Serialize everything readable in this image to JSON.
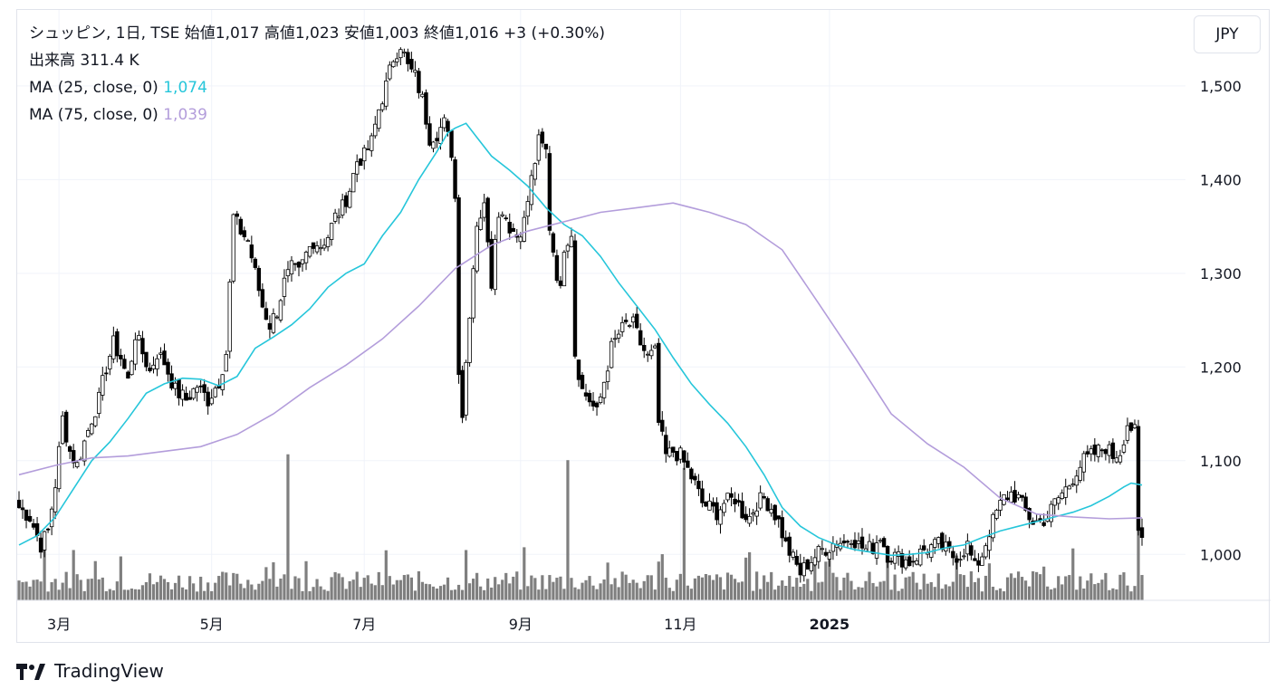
{
  "header": {
    "line1": "シュッピン, 1日, TSE  始値1,017  高値1,023  安値1,003  終値1,016  +3 (+0.30%)",
    "volume": "出来高  311.4 K",
    "ma25_label": "MA (25, close, 0)",
    "ma25_value": "1,074",
    "ma75_label": "MA (75, close, 0)",
    "ma75_value": "1,039"
  },
  "currency": "JPY",
  "brand": "TradingView",
  "colors": {
    "ma25": "#26c6da",
    "ma75": "#b39ddb",
    "candle": "#000000",
    "volume": "#7f7f7f",
    "grid": "#f0f3fa"
  },
  "chart_data": {
    "type": "candlestick",
    "symbol": "シュッピン",
    "interval": "1日",
    "exchange": "TSE",
    "y_ticks": [
      1000,
      1100,
      1200,
      1300,
      1400,
      1500
    ],
    "y_tick_labels": [
      "1,000",
      "1,100",
      "1,200",
      "1,300",
      "1,400",
      "1,500"
    ],
    "ylim": [
      951,
      1581
    ],
    "x_labels": [
      "3月",
      "5月",
      "7月",
      "9月",
      "11月",
      "2025"
    ],
    "x_label_bar_index": [
      11,
      53,
      95,
      138,
      182,
      223
    ],
    "last": {
      "open": 1017,
      "high": 1023,
      "low": 1003,
      "close": 1016,
      "change": 3,
      "change_pct": 0.3
    },
    "close_path": [
      [
        0,
        1050
      ],
      [
        3,
        1040
      ],
      [
        6,
        1010
      ],
      [
        8,
        1025
      ],
      [
        10,
        1075
      ],
      [
        12,
        1145
      ],
      [
        14,
        1110
      ],
      [
        16,
        1095
      ],
      [
        18,
        1120
      ],
      [
        20,
        1145
      ],
      [
        22,
        1165
      ],
      [
        24,
        1200
      ],
      [
        26,
        1225
      ],
      [
        28,
        1210
      ],
      [
        30,
        1185
      ],
      [
        32,
        1235
      ],
      [
        34,
        1215
      ],
      [
        36,
        1195
      ],
      [
        38,
        1215
      ],
      [
        40,
        1205
      ],
      [
        43,
        1175
      ],
      [
        46,
        1165
      ],
      [
        49,
        1180
      ],
      [
        52,
        1165
      ],
      [
        55,
        1185
      ],
      [
        57,
        1215
      ],
      [
        59,
        1360
      ],
      [
        61,
        1345
      ],
      [
        63,
        1335
      ],
      [
        65,
        1300
      ],
      [
        67,
        1265
      ],
      [
        69,
        1245
      ],
      [
        71,
        1260
      ],
      [
        73,
        1290
      ],
      [
        75,
        1305
      ],
      [
        77,
        1300
      ],
      [
        79,
        1320
      ],
      [
        81,
        1335
      ],
      [
        83,
        1330
      ],
      [
        85,
        1340
      ],
      [
        87,
        1360
      ],
      [
        89,
        1370
      ],
      [
        91,
        1390
      ],
      [
        93,
        1420
      ],
      [
        95,
        1425
      ],
      [
        97,
        1440
      ],
      [
        99,
        1475
      ],
      [
        101,
        1500
      ],
      [
        103,
        1530
      ],
      [
        105,
        1545
      ],
      [
        107,
        1520
      ],
      [
        109,
        1510
      ],
      [
        111,
        1485
      ],
      [
        113,
        1445
      ],
      [
        115,
        1450
      ],
      [
        117,
        1460
      ],
      [
        119,
        1430
      ],
      [
        120,
        1380
      ],
      [
        121,
        1200
      ],
      [
        122,
        1150
      ],
      [
        124,
        1260
      ],
      [
        126,
        1355
      ],
      [
        128,
        1370
      ],
      [
        129,
        1340
      ],
      [
        130,
        1290
      ],
      [
        131,
        1345
      ],
      [
        133,
        1370
      ],
      [
        135,
        1350
      ],
      [
        137,
        1340
      ],
      [
        139,
        1355
      ],
      [
        141,
        1400
      ],
      [
        143,
        1440
      ],
      [
        145,
        1430
      ],
      [
        146,
        1350
      ],
      [
        148,
        1300
      ],
      [
        149,
        1280
      ],
      [
        150,
        1330
      ],
      [
        152,
        1345
      ],
      [
        153,
        1215
      ],
      [
        155,
        1175
      ],
      [
        157,
        1165
      ],
      [
        159,
        1150
      ],
      [
        161,
        1185
      ],
      [
        163,
        1220
      ],
      [
        165,
        1235
      ],
      [
        167,
        1245
      ],
      [
        169,
        1245
      ],
      [
        171,
        1225
      ],
      [
        173,
        1210
      ],
      [
        175,
        1215
      ],
      [
        176,
        1140
      ],
      [
        178,
        1105
      ],
      [
        180,
        1110
      ],
      [
        182,
        1105
      ],
      [
        184,
        1090
      ],
      [
        186,
        1075
      ],
      [
        188,
        1055
      ],
      [
        190,
        1050
      ],
      [
        192,
        1045
      ],
      [
        194,
        1055
      ],
      [
        196,
        1058
      ],
      [
        197,
        1060
      ],
      [
        199,
        1045
      ],
      [
        201,
        1040
      ],
      [
        203,
        1055
      ],
      [
        205,
        1060
      ],
      [
        207,
        1050
      ],
      [
        209,
        1035
      ],
      [
        211,
        1010
      ],
      [
        213,
        995
      ],
      [
        215,
        980
      ],
      [
        217,
        990
      ],
      [
        219,
        998
      ],
      [
        221,
        1005
      ],
      [
        223,
        1008
      ],
      [
        225,
        1015
      ],
      [
        227,
        1012
      ],
      [
        229,
        1020
      ],
      [
        231,
        1010
      ],
      [
        233,
        1005
      ],
      [
        235,
        1008
      ],
      [
        237,
        1020
      ],
      [
        239,
        1000
      ],
      [
        241,
        998
      ],
      [
        243,
        995
      ],
      [
        245,
        992
      ],
      [
        247,
        998
      ],
      [
        249,
        1005
      ],
      [
        251,
        1008
      ],
      [
        253,
        1010
      ],
      [
        255,
        1005
      ],
      [
        257,
        998
      ],
      [
        259,
        1000
      ],
      [
        261,
        1010
      ],
      [
        263,
        985
      ],
      [
        265,
        1000
      ],
      [
        267,
        1025
      ],
      [
        269,
        1045
      ],
      [
        271,
        1060
      ],
      [
        273,
        1065
      ],
      [
        275,
        1060
      ],
      [
        277,
        1045
      ],
      [
        279,
        1035
      ],
      [
        281,
        1035
      ],
      [
        283,
        1040
      ],
      [
        285,
        1055
      ],
      [
        287,
        1065
      ],
      [
        289,
        1075
      ],
      [
        291,
        1090
      ],
      [
        293,
        1100
      ],
      [
        295,
        1105
      ],
      [
        297,
        1110
      ],
      [
        299,
        1115
      ],
      [
        301,
        1105
      ],
      [
        303,
        1110
      ],
      [
        305,
        1140
      ],
      [
        307,
        1130
      ],
      [
        308,
        1020
      ],
      [
        309,
        1016
      ]
    ],
    "series": [
      {
        "name": "MA (25, close, 0)",
        "last": 1074,
        "values": [
          [
            0,
            1010
          ],
          [
            5,
            1020
          ],
          [
            10,
            1040
          ],
          [
            15,
            1070
          ],
          [
            20,
            1100
          ],
          [
            25,
            1120
          ],
          [
            30,
            1145
          ],
          [
            35,
            1172
          ],
          [
            40,
            1182
          ],
          [
            45,
            1188
          ],
          [
            50,
            1187
          ],
          [
            55,
            1180
          ],
          [
            60,
            1190
          ],
          [
            65,
            1220
          ],
          [
            70,
            1232
          ],
          [
            75,
            1245
          ],
          [
            80,
            1262
          ],
          [
            85,
            1285
          ],
          [
            90,
            1300
          ],
          [
            95,
            1310
          ],
          [
            100,
            1340
          ],
          [
            105,
            1365
          ],
          [
            110,
            1400
          ],
          [
            115,
            1430
          ],
          [
            118,
            1450
          ],
          [
            120,
            1455
          ],
          [
            123,
            1460
          ],
          [
            126,
            1445
          ],
          [
            130,
            1425
          ],
          [
            135,
            1410
          ],
          [
            140,
            1393
          ],
          [
            145,
            1370
          ],
          [
            150,
            1352
          ],
          [
            155,
            1340
          ],
          [
            160,
            1318
          ],
          [
            165,
            1290
          ],
          [
            170,
            1265
          ],
          [
            175,
            1240
          ],
          [
            180,
            1210
          ],
          [
            185,
            1182
          ],
          [
            190,
            1160
          ],
          [
            195,
            1140
          ],
          [
            200,
            1115
          ],
          [
            205,
            1085
          ],
          [
            210,
            1050
          ],
          [
            215,
            1030
          ],
          [
            220,
            1018
          ],
          [
            225,
            1010
          ],
          [
            230,
            1005
          ],
          [
            235,
            1002
          ],
          [
            240,
            999
          ],
          [
            245,
            1000
          ],
          [
            250,
            1002
          ],
          [
            255,
            1007
          ],
          [
            260,
            1010
          ],
          [
            265,
            1018
          ],
          [
            270,
            1025
          ],
          [
            275,
            1030
          ],
          [
            280,
            1035
          ],
          [
            285,
            1040
          ],
          [
            290,
            1045
          ],
          [
            295,
            1052
          ],
          [
            300,
            1062
          ],
          [
            304,
            1072
          ],
          [
            306,
            1076
          ],
          [
            309,
            1074
          ]
        ]
      },
      {
        "name": "MA (75, close, 0)",
        "last": 1039,
        "values": [
          [
            0,
            1085
          ],
          [
            10,
            1095
          ],
          [
            20,
            1103
          ],
          [
            30,
            1105
          ],
          [
            40,
            1110
          ],
          [
            50,
            1115
          ],
          [
            60,
            1128
          ],
          [
            70,
            1150
          ],
          [
            80,
            1178
          ],
          [
            90,
            1202
          ],
          [
            100,
            1230
          ],
          [
            110,
            1265
          ],
          [
            120,
            1305
          ],
          [
            130,
            1330
          ],
          [
            140,
            1345
          ],
          [
            150,
            1355
          ],
          [
            160,
            1365
          ],
          [
            170,
            1370
          ],
          [
            180,
            1375
          ],
          [
            190,
            1365
          ],
          [
            200,
            1352
          ],
          [
            210,
            1325
          ],
          [
            220,
            1268
          ],
          [
            230,
            1210
          ],
          [
            240,
            1150
          ],
          [
            250,
            1118
          ],
          [
            260,
            1093
          ],
          [
            270,
            1060
          ],
          [
            280,
            1043
          ],
          [
            290,
            1040
          ],
          [
            300,
            1038
          ],
          [
            309,
            1039
          ]
        ]
      }
    ],
    "volume": {
      "base_value_k": 150,
      "spikes": [
        {
          "bar": 7,
          "value_k": 650
        },
        {
          "bar": 74,
          "value_k": 1500
        },
        {
          "bar": 151,
          "value_k": 1440
        },
        {
          "bar": 183,
          "value_k": 1360
        },
        {
          "bar": 308,
          "value_k": 1540
        }
      ],
      "last_k": 311.4
    },
    "bars_total": 310,
    "grid": true,
    "legend_position": "top-left"
  }
}
